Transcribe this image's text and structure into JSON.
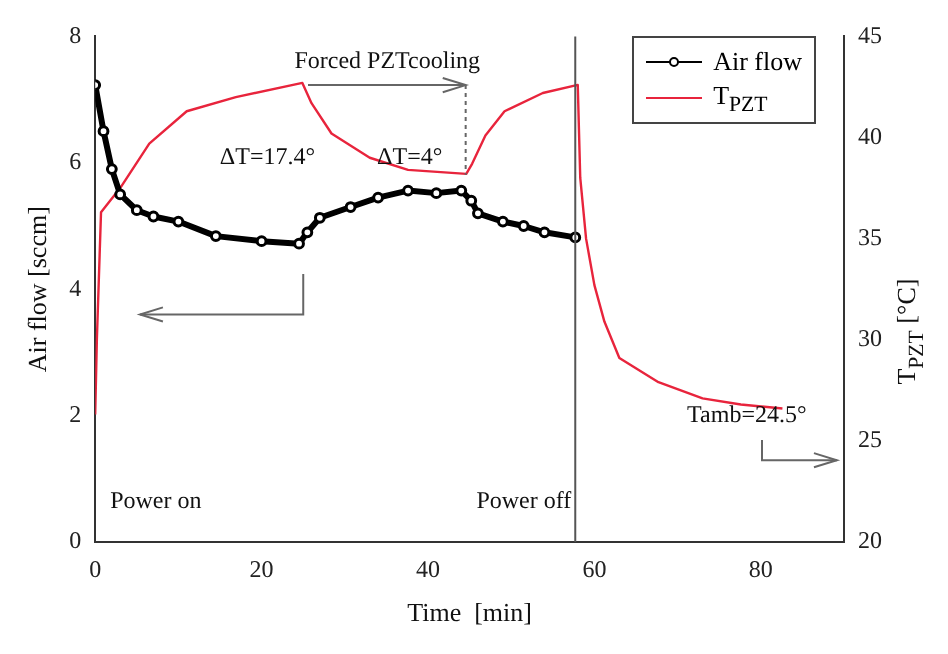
{
  "chart_data": {
    "type": "line",
    "xlabel": "Time  [min]",
    "ylabel": "Air flow [sccm]",
    "y2label": "T$_{PZT}$ [°C]",
    "xlim": [
      0,
      90
    ],
    "xticks": [
      0,
      20,
      40,
      60,
      80
    ],
    "ylim": [
      0,
      8
    ],
    "yticks": [
      0,
      2,
      4,
      6,
      8
    ],
    "y2lim": [
      20,
      45
    ],
    "y2ticks": [
      20,
      25,
      30,
      35,
      40,
      45
    ],
    "legend": "top right",
    "grid": false,
    "series": [
      {
        "name": "Air flow",
        "color": "#000000",
        "marker": "circle",
        "x": [
          0,
          1,
          2,
          3,
          5,
          7,
          10,
          14.5,
          20,
          24.5,
          25.5,
          27,
          30.7,
          34,
          37.6,
          41,
          44,
          45.2,
          46,
          49,
          51.5,
          54,
          57.7
        ],
        "values": [
          7.23,
          6.5,
          5.9,
          5.5,
          5.25,
          5.15,
          5.07,
          4.84,
          4.76,
          4.72,
          4.9,
          5.13,
          5.3,
          5.45,
          5.56,
          5.52,
          5.56,
          5.4,
          5.2,
          5.07,
          5.0,
          4.9,
          4.82
        ]
      },
      {
        "name": "T$_{PZT}$",
        "color": "#e8243c",
        "marker": "none",
        "axis": "y2",
        "x": [
          0,
          0.2,
          0.7,
          3,
          6.5,
          11,
          16.9,
          24.9,
          26,
          28.4,
          33,
          37.6,
          44.6,
          45.3,
          46.9,
          49.2,
          53.8,
          58,
          58.3,
          59,
          60,
          61.2,
          63,
          67.7,
          73,
          77.6,
          82.6
        ],
        "values": [
          26.3,
          30,
          36.3,
          37.5,
          39.7,
          41.3,
          42,
          42.7,
          41.7,
          40.2,
          39,
          38.4,
          38.2,
          38.7,
          40.1,
          41.3,
          42.2,
          42.6,
          38,
          35,
          32.7,
          30.9,
          29.1,
          27.9,
          27.1,
          26.8,
          26.6
        ]
      }
    ],
    "ref_lines": [
      {
        "axis": "x",
        "value": 57.7,
        "label": "Power off",
        "color": "#555555"
      }
    ],
    "annotations": [
      {
        "text": "Forced PZTcooling",
        "x": 44.6,
        "y": 5.82
      },
      "ΔT=17.4°",
      "ΔT=4°",
      "Tamb=24.5°",
      "Power on"
    ]
  }
}
